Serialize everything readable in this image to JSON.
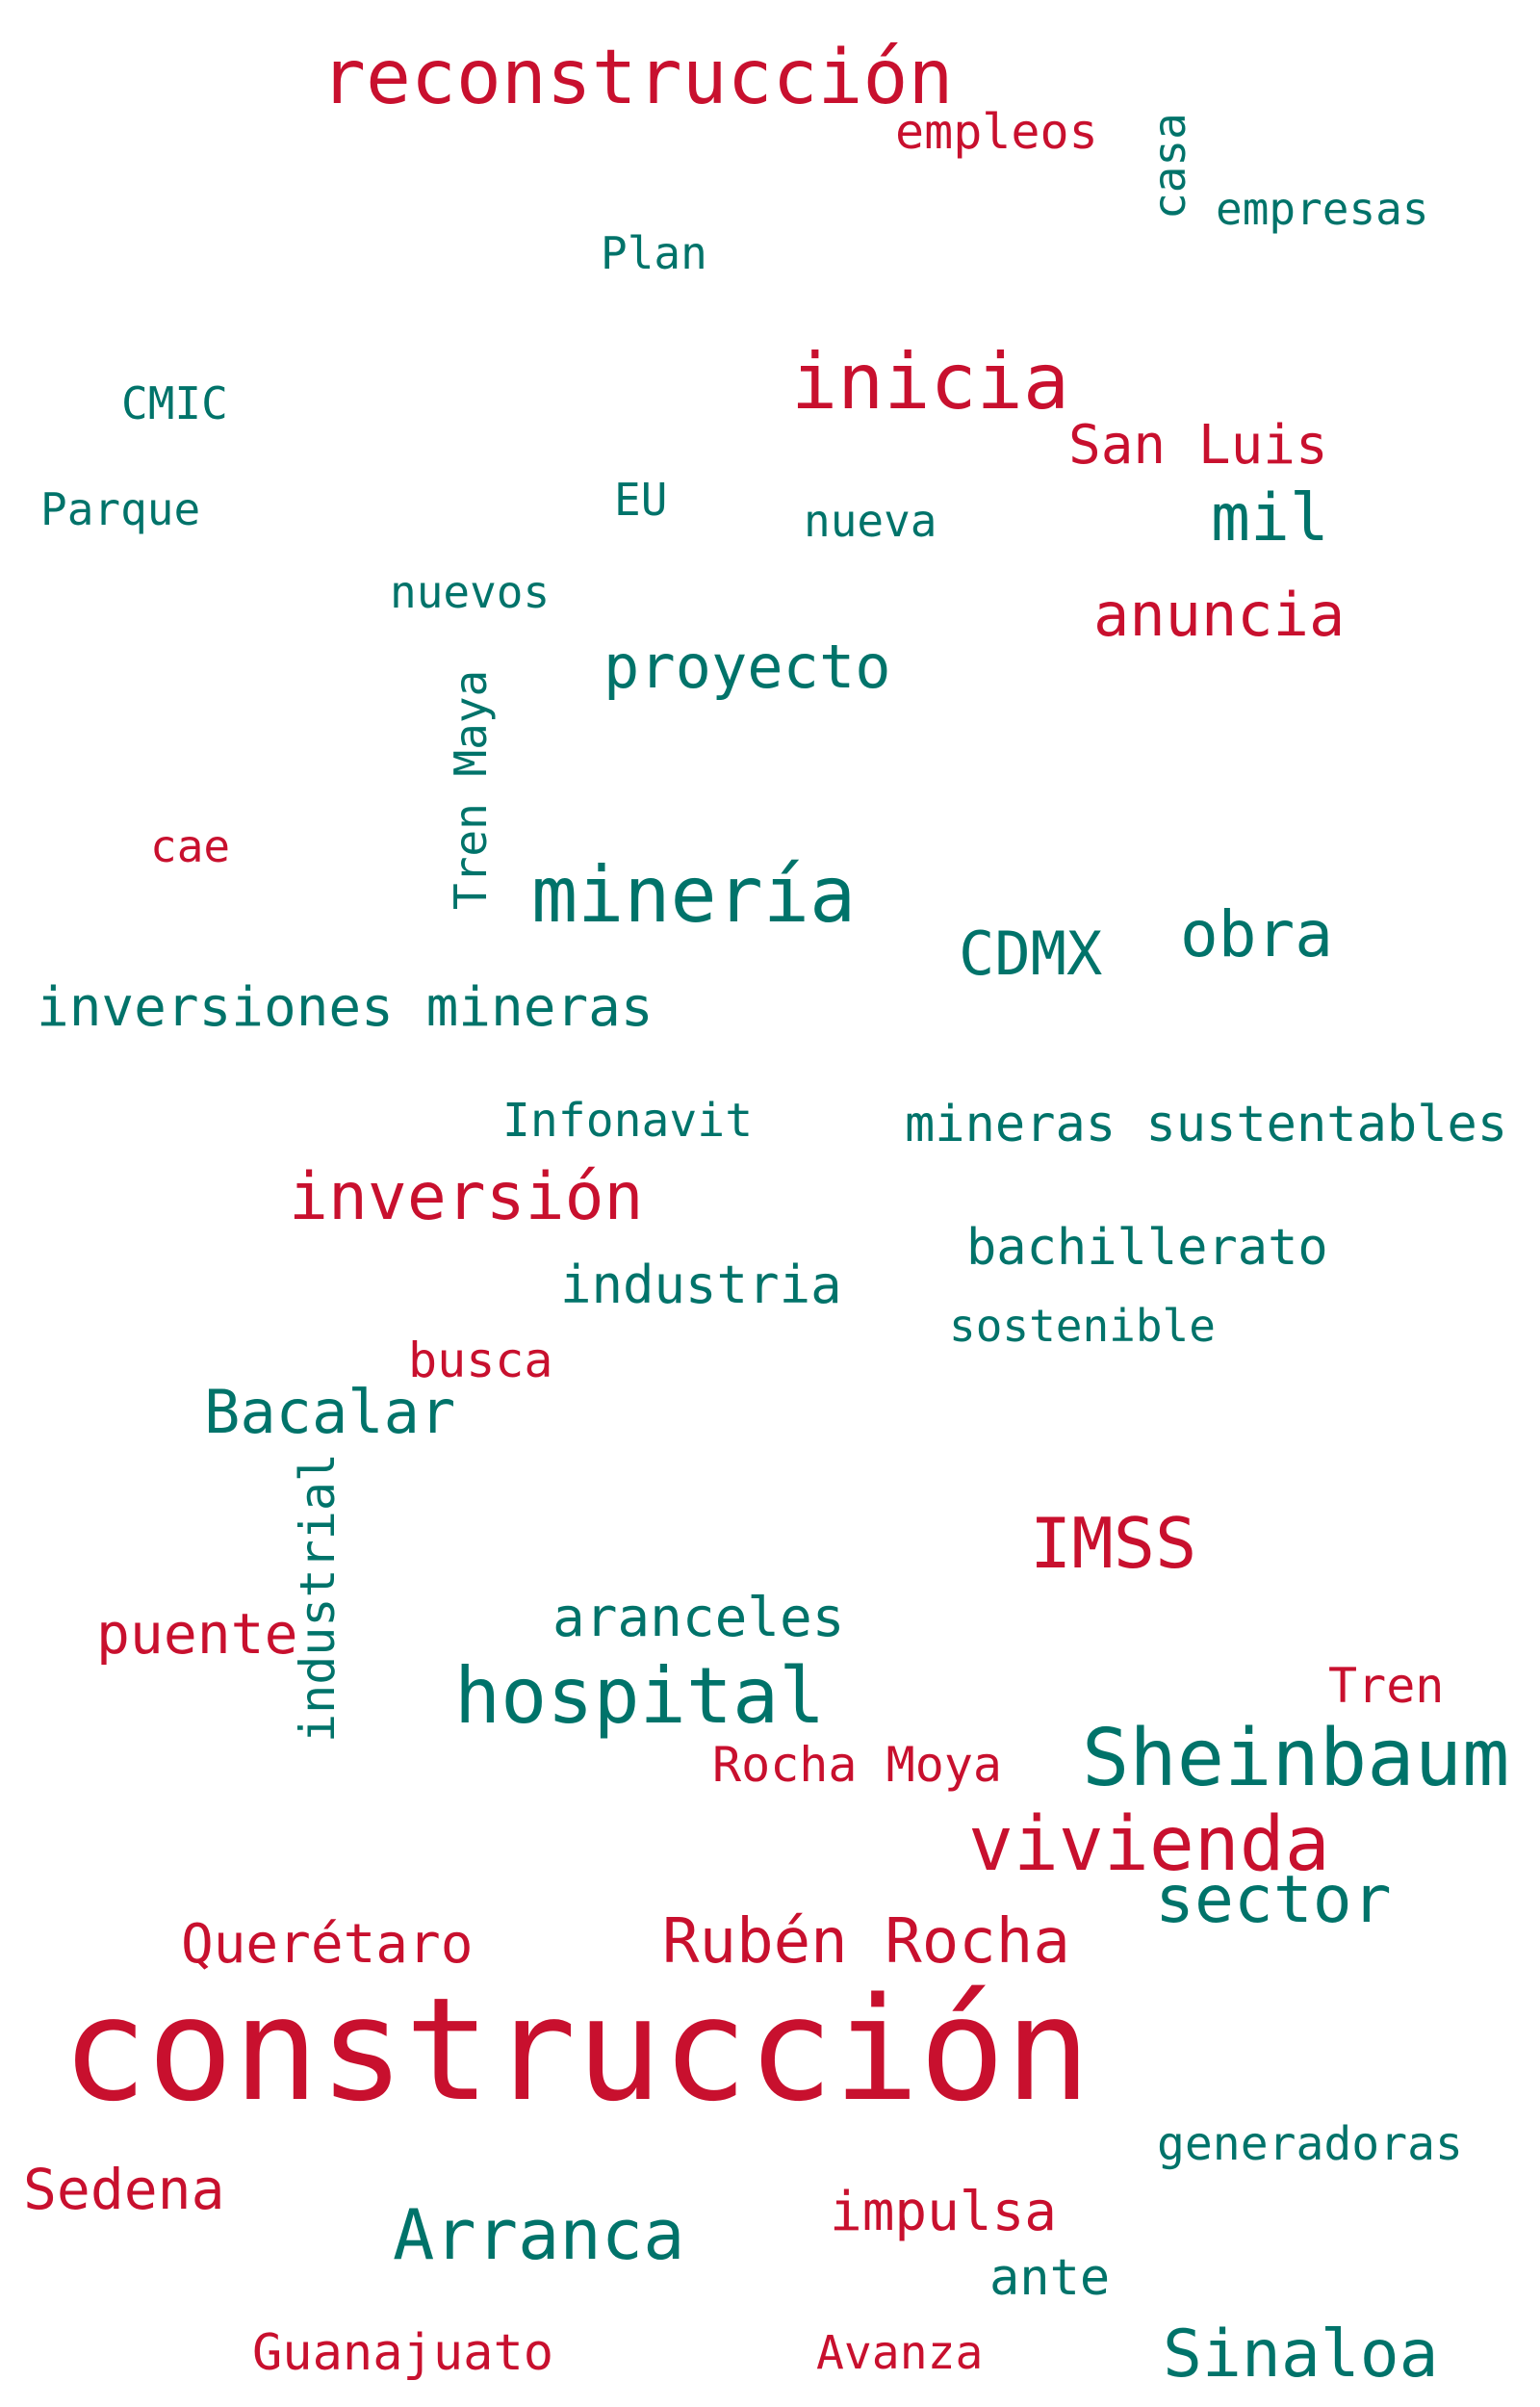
{
  "colors": {
    "red": "#c8102e",
    "teal": "#00736a",
    "background": "#ffffff"
  },
  "words": [
    {
      "text": "reconstrucción",
      "color": "red"
    },
    {
      "text": "empleos",
      "color": "red"
    },
    {
      "text": "casa",
      "color": "teal",
      "vertical": true
    },
    {
      "text": "empresas",
      "color": "teal"
    },
    {
      "text": "Plan",
      "color": "teal"
    },
    {
      "text": "inicia",
      "color": "red"
    },
    {
      "text": "CMIC",
      "color": "teal"
    },
    {
      "text": "San Luis",
      "color": "red"
    },
    {
      "text": "Parque",
      "color": "teal"
    },
    {
      "text": "EU",
      "color": "teal"
    },
    {
      "text": "nueva",
      "color": "teal"
    },
    {
      "text": "mil",
      "color": "teal"
    },
    {
      "text": "nuevos",
      "color": "teal"
    },
    {
      "text": "anuncia",
      "color": "red"
    },
    {
      "text": "proyecto",
      "color": "teal"
    },
    {
      "text": "Tren Maya",
      "color": "teal",
      "vertical": true
    },
    {
      "text": "cae",
      "color": "red"
    },
    {
      "text": "minería",
      "color": "teal"
    },
    {
      "text": "CDMX",
      "color": "teal"
    },
    {
      "text": "obra",
      "color": "teal"
    },
    {
      "text": "inversiones mineras",
      "color": "teal"
    },
    {
      "text": "Infonavit",
      "color": "teal"
    },
    {
      "text": "mineras sustentables",
      "color": "teal"
    },
    {
      "text": "inversión",
      "color": "red"
    },
    {
      "text": "bachillerato",
      "color": "teal"
    },
    {
      "text": "industria",
      "color": "teal"
    },
    {
      "text": "sostenible",
      "color": "teal"
    },
    {
      "text": "busca",
      "color": "red"
    },
    {
      "text": "Bacalar",
      "color": "teal"
    },
    {
      "text": "industrial",
      "color": "teal",
      "vertical": true
    },
    {
      "text": "IMSS",
      "color": "red"
    },
    {
      "text": "aranceles",
      "color": "teal"
    },
    {
      "text": "puente",
      "color": "red"
    },
    {
      "text": "hospital",
      "color": "teal"
    },
    {
      "text": "Tren",
      "color": "red"
    },
    {
      "text": "Rocha Moya",
      "color": "red"
    },
    {
      "text": "Sheinbaum",
      "color": "teal"
    },
    {
      "text": "vivienda",
      "color": "red"
    },
    {
      "text": "sector",
      "color": "teal"
    },
    {
      "text": "Querétaro",
      "color": "red"
    },
    {
      "text": "Rubén Rocha",
      "color": "red"
    },
    {
      "text": "construcción",
      "color": "red"
    },
    {
      "text": "generadoras",
      "color": "teal"
    },
    {
      "text": "Sedena",
      "color": "red"
    },
    {
      "text": "impulsa",
      "color": "red"
    },
    {
      "text": "Arranca",
      "color": "teal"
    },
    {
      "text": "ante",
      "color": "teal"
    },
    {
      "text": "Guanajuato",
      "color": "red"
    },
    {
      "text": "Avanza",
      "color": "red"
    },
    {
      "text": "Sinaloa",
      "color": "teal"
    }
  ]
}
